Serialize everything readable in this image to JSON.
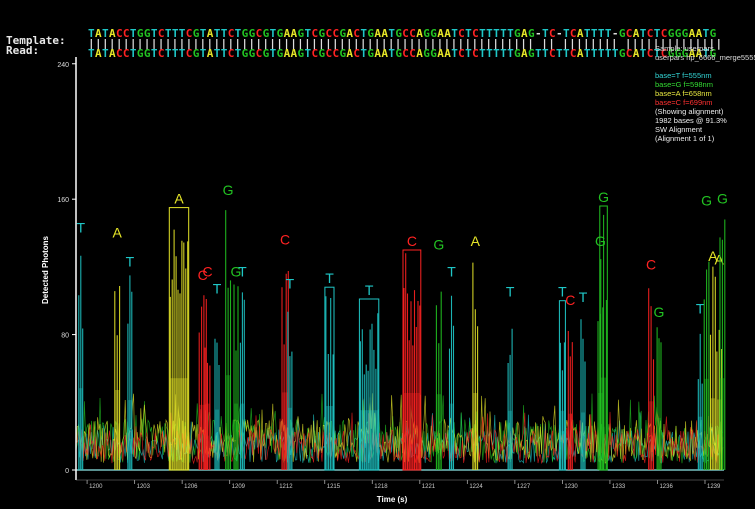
{
  "alignment": {
    "template_label": "Template:",
    "read_label": "Read:",
    "template_seq": "TATACCTGGTCTTTCGTATTCTGGCGTGAAGTCGCCGACTGAATGCCAGGAATCTCTTTTTGAG-TC-TCATTTT-GCATCTCGGGAATG",
    "read_seq": "TATACCTGGTCTTTCGTATTCTGGCGTGAAGTCGCCGACTGAATGCCAGGAATCTCTTTTTGAGTTCTTCATTTTTGCATCTCGGGAATG",
    "match_marks": "|||||||||||||||||||||||||||||||||||||||||||||||||||||||||||||||| || |||||||| ||||||||||||||"
  },
  "info_panel": {
    "lines": [
      "Sample: userpars",
      "userpars hp_6666_merge5555",
      "",
      "base=T f=555nm",
      "base=G f=598nm",
      "base=A f=658nm",
      "base=C f=699nm",
      "(Showing alignment)",
      "1982 bases @ 91.3%",
      "SW Alignment",
      "(Alignment 1 of 1)"
    ],
    "line_colors": [
      "#dddddd",
      "#dddddd",
      "#dddddd",
      "#33d6d6",
      "#33dd33",
      "#e8e840",
      "#ff3030",
      "#eeeeee",
      "#eeeeee",
      "#eeeeee",
      "#eeeeee"
    ]
  },
  "colors": {
    "T": "#1fc7c7",
    "G": "#22c322",
    "A": "#e6e628",
    "C": "#ff2222",
    "axis": "#ffffff",
    "background": "#000000"
  },
  "chart_data": {
    "type": "line",
    "title": "",
    "xlabel": "Time (s)",
    "ylabel": "Detected Photons",
    "xlim": [
      1199.3,
      1240.2
    ],
    "ylim": [
      0,
      244
    ],
    "y_ticks": [
      "0",
      "80",
      "160",
      "240"
    ],
    "x_ticks": [
      "1200",
      "1203",
      "1206",
      "1209",
      "1212",
      "1215",
      "1218",
      "1221",
      "1224",
      "1227",
      "1230",
      "1233",
      "1236",
      "1239"
    ],
    "series": [
      {
        "name": "base=T f=555nm",
        "color": "#1fc7c7"
      },
      {
        "name": "base=G f=598nm",
        "color": "#22c322"
      },
      {
        "name": "base=A f=658nm",
        "color": "#e6e628"
      },
      {
        "name": "base=C f=699nm",
        "color": "#ff2222"
      }
    ],
    "pulses": [
      {
        "base": "T",
        "time": 1199.6,
        "width": 0.25,
        "height": 138,
        "boxed": false
      },
      {
        "base": "A",
        "time": 1201.9,
        "width": 0.3,
        "height": 135,
        "boxed": false
      },
      {
        "base": "T",
        "time": 1202.7,
        "width": 0.25,
        "height": 118,
        "boxed": false
      },
      {
        "base": "A",
        "time": 1205.8,
        "width": 1.1,
        "height": 155,
        "boxed": true
      },
      {
        "base": "C",
        "time": 1207.3,
        "width": 0.45,
        "height": 110,
        "boxed": false
      },
      {
        "base": "C",
        "time": 1207.6,
        "width": 0.3,
        "height": 112,
        "boxed": false
      },
      {
        "base": "T",
        "time": 1208.2,
        "width": 0.25,
        "height": 102,
        "boxed": false
      },
      {
        "base": "G",
        "time": 1208.9,
        "width": 0.3,
        "height": 160,
        "boxed": false
      },
      {
        "base": "G",
        "time": 1209.4,
        "width": 0.25,
        "height": 112,
        "boxed": false
      },
      {
        "base": "T",
        "time": 1209.8,
        "width": 0.25,
        "height": 112,
        "boxed": false
      },
      {
        "base": "C",
        "time": 1212.5,
        "width": 0.4,
        "height": 131,
        "boxed": false
      },
      {
        "base": "T",
        "time": 1212.8,
        "width": 0.25,
        "height": 105,
        "boxed": false
      },
      {
        "base": "T",
        "time": 1215.3,
        "width": 0.45,
        "height": 108,
        "boxed": true
      },
      {
        "base": "T",
        "time": 1217.8,
        "width": 1.1,
        "height": 101,
        "boxed": true
      },
      {
        "base": "C",
        "time": 1220.5,
        "width": 1.0,
        "height": 130,
        "boxed": true
      },
      {
        "base": "G",
        "time": 1222.2,
        "width": 0.3,
        "height": 128,
        "boxed": false
      },
      {
        "base": "T",
        "time": 1223.0,
        "width": 0.25,
        "height": 112,
        "boxed": false
      },
      {
        "base": "A",
        "time": 1224.5,
        "width": 0.3,
        "height": 130,
        "boxed": false
      },
      {
        "base": "T",
        "time": 1226.7,
        "width": 0.25,
        "height": 100,
        "boxed": false
      },
      {
        "base": "T",
        "time": 1230.0,
        "width": 0.25,
        "height": 100,
        "boxed": true
      },
      {
        "base": "C",
        "time": 1230.5,
        "width": 0.25,
        "height": 95,
        "boxed": false
      },
      {
        "base": "T",
        "time": 1231.3,
        "width": 0.25,
        "height": 97,
        "boxed": false
      },
      {
        "base": "G",
        "time": 1232.6,
        "width": 0.35,
        "height": 156,
        "boxed": true
      },
      {
        "base": "G",
        "time": 1232.4,
        "width": 0.3,
        "height": 130,
        "boxed": false
      },
      {
        "base": "C",
        "time": 1235.6,
        "width": 0.3,
        "height": 116,
        "boxed": false
      },
      {
        "base": "G",
        "time": 1236.1,
        "width": 0.25,
        "height": 88,
        "boxed": false
      },
      {
        "base": "T",
        "time": 1238.7,
        "width": 0.25,
        "height": 90,
        "boxed": false
      },
      {
        "base": "G",
        "time": 1239.1,
        "width": 0.3,
        "height": 154,
        "boxed": false
      },
      {
        "base": "A",
        "time": 1239.5,
        "width": 0.3,
        "height": 121,
        "boxed": false
      },
      {
        "base": "A",
        "time": 1239.9,
        "width": 0.3,
        "height": 119,
        "boxed": false
      },
      {
        "base": "G",
        "time": 1240.1,
        "width": 0.3,
        "height": 155,
        "boxed": false
      }
    ]
  }
}
